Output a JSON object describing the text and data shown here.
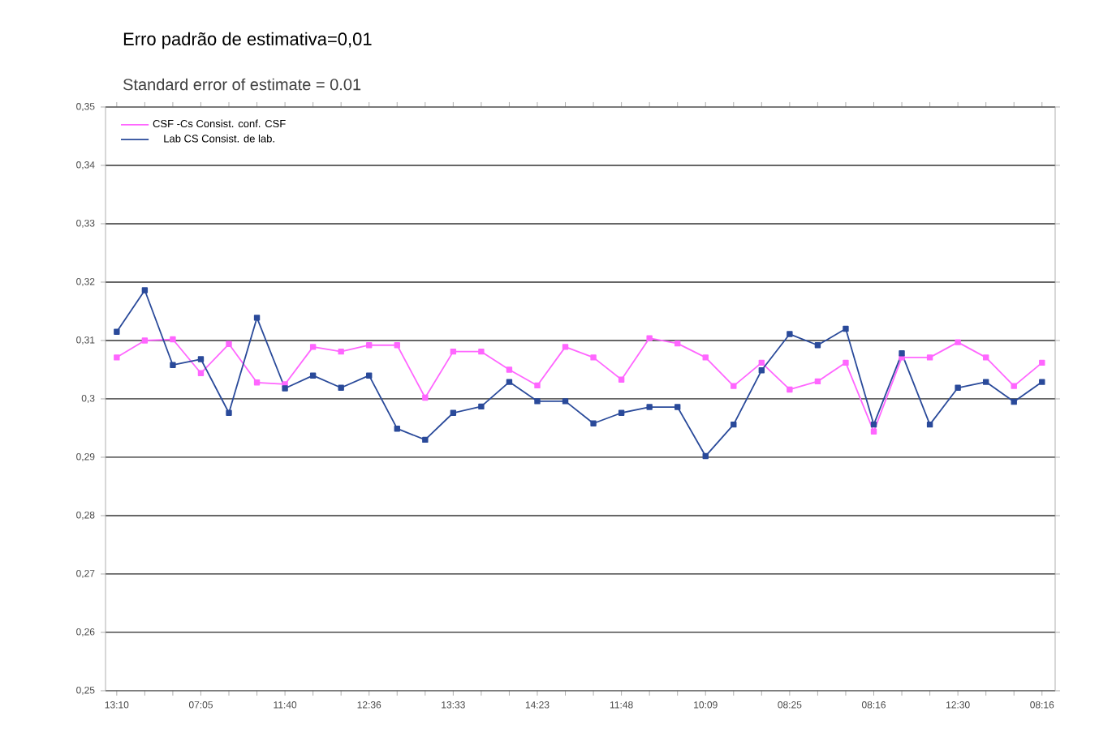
{
  "chart_data": {
    "type": "line",
    "title": "Erro padrão de estimativa=0,01",
    "subtitle": "Standard error of estimate = 0.01",
    "categories": [
      "13:10",
      null,
      null,
      "07:05",
      null,
      null,
      "11:40",
      null,
      null,
      "12:36",
      null,
      null,
      "13:33",
      null,
      null,
      "14:23",
      null,
      null,
      "11:48",
      null,
      null,
      "10:09",
      null,
      null,
      "08:25",
      null,
      null,
      "08:16",
      null,
      null,
      "12:30",
      null,
      null,
      "08:16"
    ],
    "series": [
      {
        "name": "CSF -Cs  Consist. conf. CSF",
        "color": "#ff66ff",
        "values": [
          0.3071,
          0.31,
          0.3102,
          0.3044,
          0.3094,
          0.3028,
          0.3025,
          0.3089,
          0.3081,
          0.3092,
          0.3092,
          0.3002,
          0.3081,
          0.3081,
          0.305,
          0.3023,
          0.3089,
          0.3071,
          0.3033,
          0.3104,
          0.3095,
          0.3071,
          0.3022,
          0.3062,
          0.3016,
          0.303,
          0.3062,
          0.2944,
          0.3071,
          0.3071,
          0.3097,
          0.3071,
          0.3022,
          0.3062
        ]
      },
      {
        "name": "Lab CS   Consist. de lab.",
        "color": "#2a4a9a",
        "values": [
          0.3115,
          0.3186,
          0.3058,
          0.3068,
          0.2976,
          0.3139,
          0.3018,
          0.304,
          0.3019,
          0.304,
          0.2949,
          0.293,
          0.2976,
          0.2987,
          0.3029,
          0.2996,
          0.2996,
          0.2958,
          0.2976,
          0.2986,
          0.2986,
          0.2902,
          0.2956,
          0.3049,
          0.3111,
          0.3092,
          0.312,
          0.2956,
          0.3078,
          0.2956,
          0.3019,
          0.3029,
          0.2995,
          0.3029
        ]
      }
    ],
    "ylim": [
      0.25,
      0.35
    ],
    "yticks": [
      {
        "value": 0.25,
        "label": "0,25"
      },
      {
        "value": 0.26,
        "label": "0,26"
      },
      {
        "value": 0.27,
        "label": "0,27"
      },
      {
        "value": 0.28,
        "label": "0,28"
      },
      {
        "value": 0.29,
        "label": "0,29"
      },
      {
        "value": 0.3,
        "label": "0,3"
      },
      {
        "value": 0.31,
        "label": "0,31"
      },
      {
        "value": 0.32,
        "label": "0,32"
      },
      {
        "value": 0.33,
        "label": "0,33"
      },
      {
        "value": 0.34,
        "label": "0,34"
      },
      {
        "value": 0.35,
        "label": "0,35"
      }
    ],
    "grid": "y",
    "legend": "top left",
    "marker": "square",
    "line_style": "solid"
  }
}
